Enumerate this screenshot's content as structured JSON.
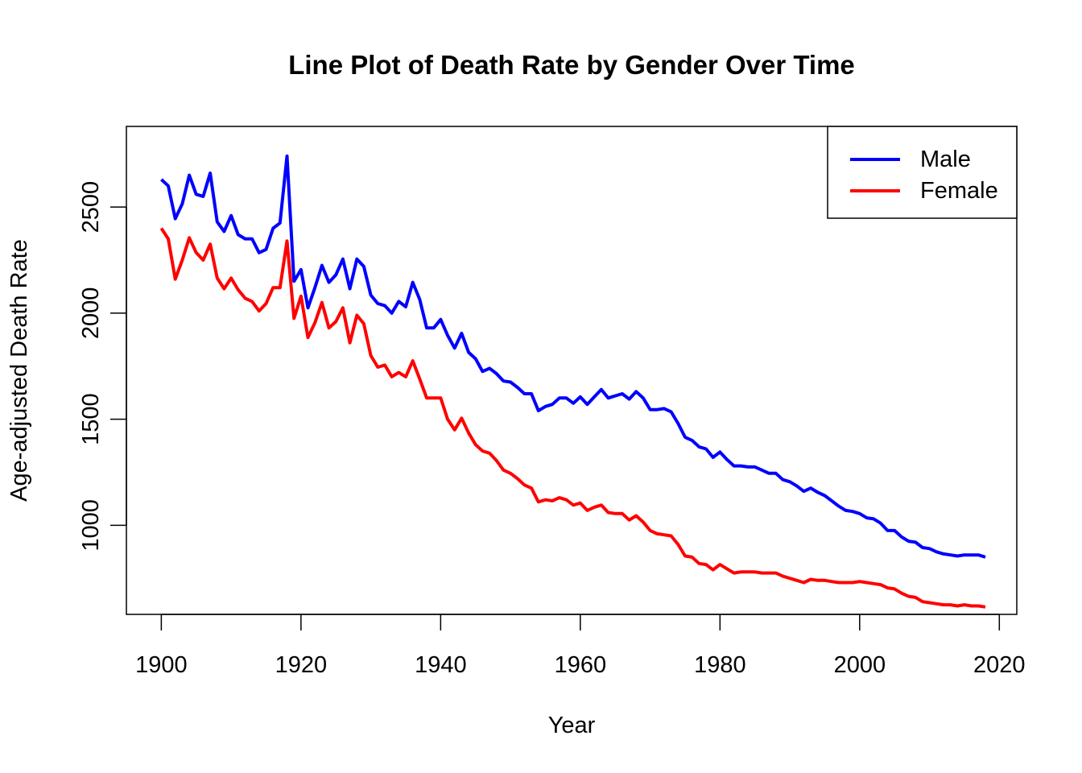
{
  "chart_data": {
    "type": "line",
    "title": "Line Plot of Death Rate by Gender Over Time",
    "xlabel": "Year",
    "ylabel": "Age-adjusted Death Rate",
    "xlim": [
      1895,
      2022.5
    ],
    "ylim": [
      580,
      2880
    ],
    "xticks": [
      1900,
      1920,
      1940,
      1960,
      1980,
      2000,
      2020
    ],
    "yticks": [
      1000,
      1500,
      2000,
      2500
    ],
    "grid": false,
    "legend": "top-right",
    "colors": {
      "Male": "#0000ff",
      "Female": "#ff0000",
      "axis": "#000000"
    },
    "series": [
      {
        "name": "Male",
        "x": [
          1900,
          1901,
          1902,
          1903,
          1904,
          1905,
          1906,
          1907,
          1908,
          1909,
          1910,
          1911,
          1912,
          1913,
          1914,
          1915,
          1916,
          1917,
          1918,
          1919,
          1920,
          1921,
          1922,
          1923,
          1924,
          1925,
          1926,
          1927,
          1928,
          1929,
          1930,
          1931,
          1932,
          1933,
          1934,
          1935,
          1936,
          1937,
          1938,
          1939,
          1940,
          1941,
          1942,
          1943,
          1944,
          1945,
          1946,
          1947,
          1948,
          1949,
          1950,
          1951,
          1952,
          1953,
          1954,
          1955,
          1956,
          1957,
          1958,
          1959,
          1960,
          1961,
          1962,
          1963,
          1964,
          1965,
          1966,
          1967,
          1968,
          1969,
          1970,
          1971,
          1972,
          1973,
          1974,
          1975,
          1976,
          1977,
          1978,
          1979,
          1980,
          1981,
          1982,
          1983,
          1984,
          1985,
          1986,
          1987,
          1988,
          1989,
          1990,
          1991,
          1992,
          1993,
          1994,
          1995,
          1996,
          1997,
          1998,
          1999,
          2000,
          2001,
          2002,
          2003,
          2004,
          2005,
          2006,
          2007,
          2008,
          2009,
          2010,
          2011,
          2012,
          2013,
          2014,
          2015,
          2016,
          2017,
          2018
        ],
        "values": [
          2630,
          2600,
          2445,
          2515,
          2650,
          2560,
          2550,
          2660,
          2430,
          2385,
          2460,
          2370,
          2350,
          2350,
          2285,
          2300,
          2400,
          2425,
          2740,
          2150,
          2205,
          2025,
          2120,
          2225,
          2145,
          2180,
          2255,
          2115,
          2255,
          2220,
          2085,
          2045,
          2035,
          2000,
          2055,
          2030,
          2145,
          2065,
          1930,
          1930,
          1970,
          1895,
          1835,
          1905,
          1815,
          1785,
          1725,
          1740,
          1715,
          1680,
          1675,
          1650,
          1620,
          1620,
          1540,
          1560,
          1570,
          1600,
          1600,
          1575,
          1605,
          1570,
          1605,
          1640,
          1600,
          1610,
          1620,
          1595,
          1630,
          1600,
          1545,
          1545,
          1550,
          1535,
          1480,
          1415,
          1400,
          1370,
          1360,
          1320,
          1345,
          1310,
          1280,
          1280,
          1275,
          1275,
          1260,
          1245,
          1245,
          1215,
          1205,
          1185,
          1160,
          1175,
          1155,
          1140,
          1115,
          1090,
          1070,
          1065,
          1055,
          1035,
          1030,
          1010,
          975,
          975,
          945,
          925,
          920,
          895,
          890,
          875,
          865,
          860,
          855,
          860,
          860,
          860,
          850
        ]
      },
      {
        "name": "Female",
        "x": [
          1900,
          1901,
          1902,
          1903,
          1904,
          1905,
          1906,
          1907,
          1908,
          1909,
          1910,
          1911,
          1912,
          1913,
          1914,
          1915,
          1916,
          1917,
          1918,
          1919,
          1920,
          1921,
          1922,
          1923,
          1924,
          1925,
          1926,
          1927,
          1928,
          1929,
          1930,
          1931,
          1932,
          1933,
          1934,
          1935,
          1936,
          1937,
          1938,
          1939,
          1940,
          1941,
          1942,
          1943,
          1944,
          1945,
          1946,
          1947,
          1948,
          1949,
          1950,
          1951,
          1952,
          1953,
          1954,
          1955,
          1956,
          1957,
          1958,
          1959,
          1960,
          1961,
          1962,
          1963,
          1964,
          1965,
          1966,
          1967,
          1968,
          1969,
          1970,
          1971,
          1972,
          1973,
          1974,
          1975,
          1976,
          1977,
          1978,
          1979,
          1980,
          1981,
          1982,
          1983,
          1984,
          1985,
          1986,
          1987,
          1988,
          1989,
          1990,
          1991,
          1992,
          1993,
          1994,
          1995,
          1996,
          1997,
          1998,
          1999,
          2000,
          2001,
          2002,
          2003,
          2004,
          2005,
          2006,
          2007,
          2008,
          2009,
          2010,
          2011,
          2012,
          2013,
          2014,
          2015,
          2016,
          2017,
          2018
        ],
        "values": [
          2400,
          2350,
          2160,
          2250,
          2355,
          2285,
          2250,
          2325,
          2165,
          2115,
          2165,
          2110,
          2070,
          2055,
          2010,
          2045,
          2120,
          2120,
          2340,
          1975,
          2080,
          1885,
          1955,
          2050,
          1930,
          1960,
          2025,
          1860,
          1990,
          1950,
          1800,
          1745,
          1755,
          1700,
          1720,
          1700,
          1775,
          1690,
          1600,
          1600,
          1600,
          1500,
          1450,
          1505,
          1435,
          1380,
          1350,
          1340,
          1305,
          1260,
          1245,
          1220,
          1190,
          1175,
          1110,
          1120,
          1115,
          1130,
          1120,
          1095,
          1105,
          1070,
          1085,
          1095,
          1060,
          1055,
          1055,
          1025,
          1045,
          1015,
          975,
          960,
          955,
          950,
          910,
          855,
          850,
          820,
          815,
          790,
          815,
          795,
          775,
          780,
          780,
          780,
          775,
          775,
          775,
          760,
          750,
          740,
          730,
          745,
          740,
          740,
          735,
          730,
          730,
          730,
          735,
          730,
          725,
          720,
          705,
          700,
          680,
          665,
          660,
          640,
          635,
          630,
          625,
          625,
          620,
          625,
          620,
          620,
          615
        ]
      }
    ]
  }
}
